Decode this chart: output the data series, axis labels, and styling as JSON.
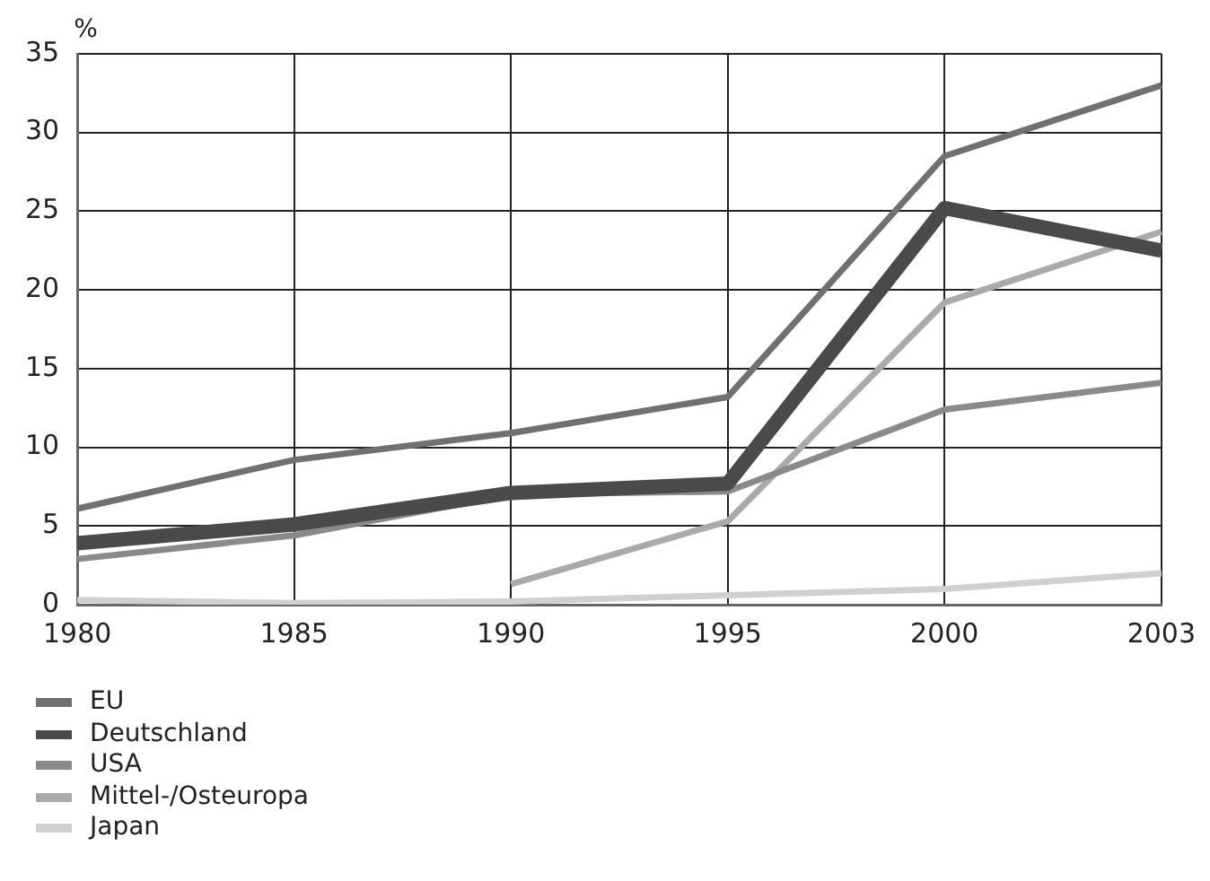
{
  "chart_data": {
    "type": "line",
    "ylabel": "%",
    "categories": [
      "1980",
      "1985",
      "1990",
      "1995",
      "2000",
      "2003"
    ],
    "series": [
      {
        "name": "EU",
        "color": "#707070",
        "values": [
          6.1,
          9.2,
          10.9,
          13.2,
          28.5,
          33.0
        ]
      },
      {
        "name": "Deutschland",
        "color": "#4a4a4a",
        "values": [
          3.9,
          5.1,
          7.1,
          7.7,
          25.2,
          22.5
        ]
      },
      {
        "name": "USA",
        "color": "#8a8a8a",
        "values": [
          2.9,
          4.4,
          7.0,
          7.2,
          12.4,
          14.1
        ]
      },
      {
        "name": "Mittel-/Osteuropa",
        "color": "#aaaaaa",
        "values": [
          null,
          null,
          1.3,
          5.3,
          19.2,
          23.7
        ]
      },
      {
        "name": "Japan",
        "color": "#d0d0d0",
        "values": [
          0.3,
          0.1,
          0.2,
          0.6,
          1.0,
          2.0
        ]
      }
    ],
    "ylim": [
      0,
      35
    ],
    "yticks": [
      0,
      5,
      10,
      15,
      20,
      25,
      30,
      35
    ],
    "grid": true,
    "legend": "bottom left",
    "marker": "none",
    "line_style": "solid"
  }
}
